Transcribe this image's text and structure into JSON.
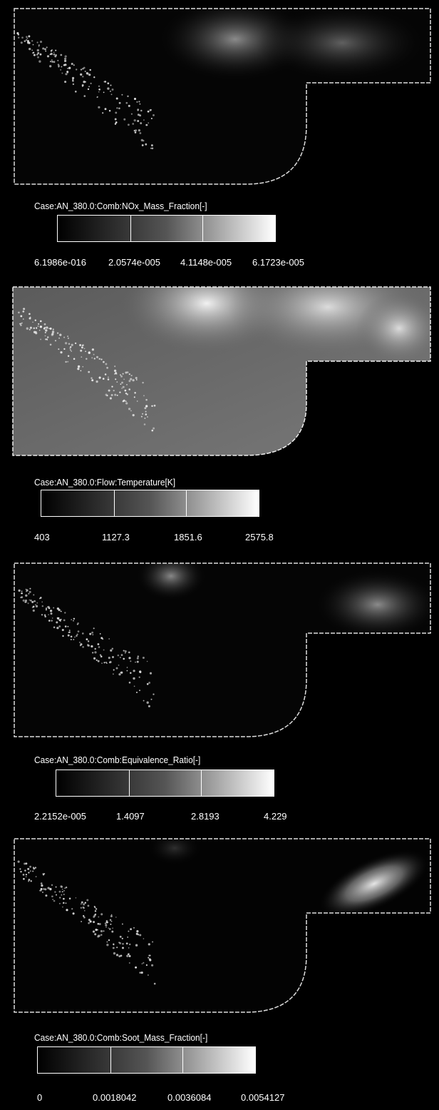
{
  "panels": [
    {
      "label": "Case:AN_380.0:Comb:NOx_Mass_Fraction[-]",
      "ticks": [
        "6.1986e-016",
        "2.0574e-005",
        "4.1148e-005",
        "6.1723e-005"
      ]
    },
    {
      "label": "Case:AN_380.0:Flow:Temperature[K]",
      "ticks": [
        "403",
        "1127.3",
        "1851.6",
        "2575.8"
      ]
    },
    {
      "label": "Case:AN_380.0:Comb:Equivalence_Ratio[-]",
      "ticks": [
        "2.2152e-005",
        "1.4097",
        "2.8193",
        "4.229"
      ]
    },
    {
      "label": "Case:AN_380.0:Comb:Soot_Mass_Fraction[-]",
      "ticks": [
        "0",
        "0.0018042",
        "0.0036084",
        "0.0054127"
      ]
    }
  ]
}
